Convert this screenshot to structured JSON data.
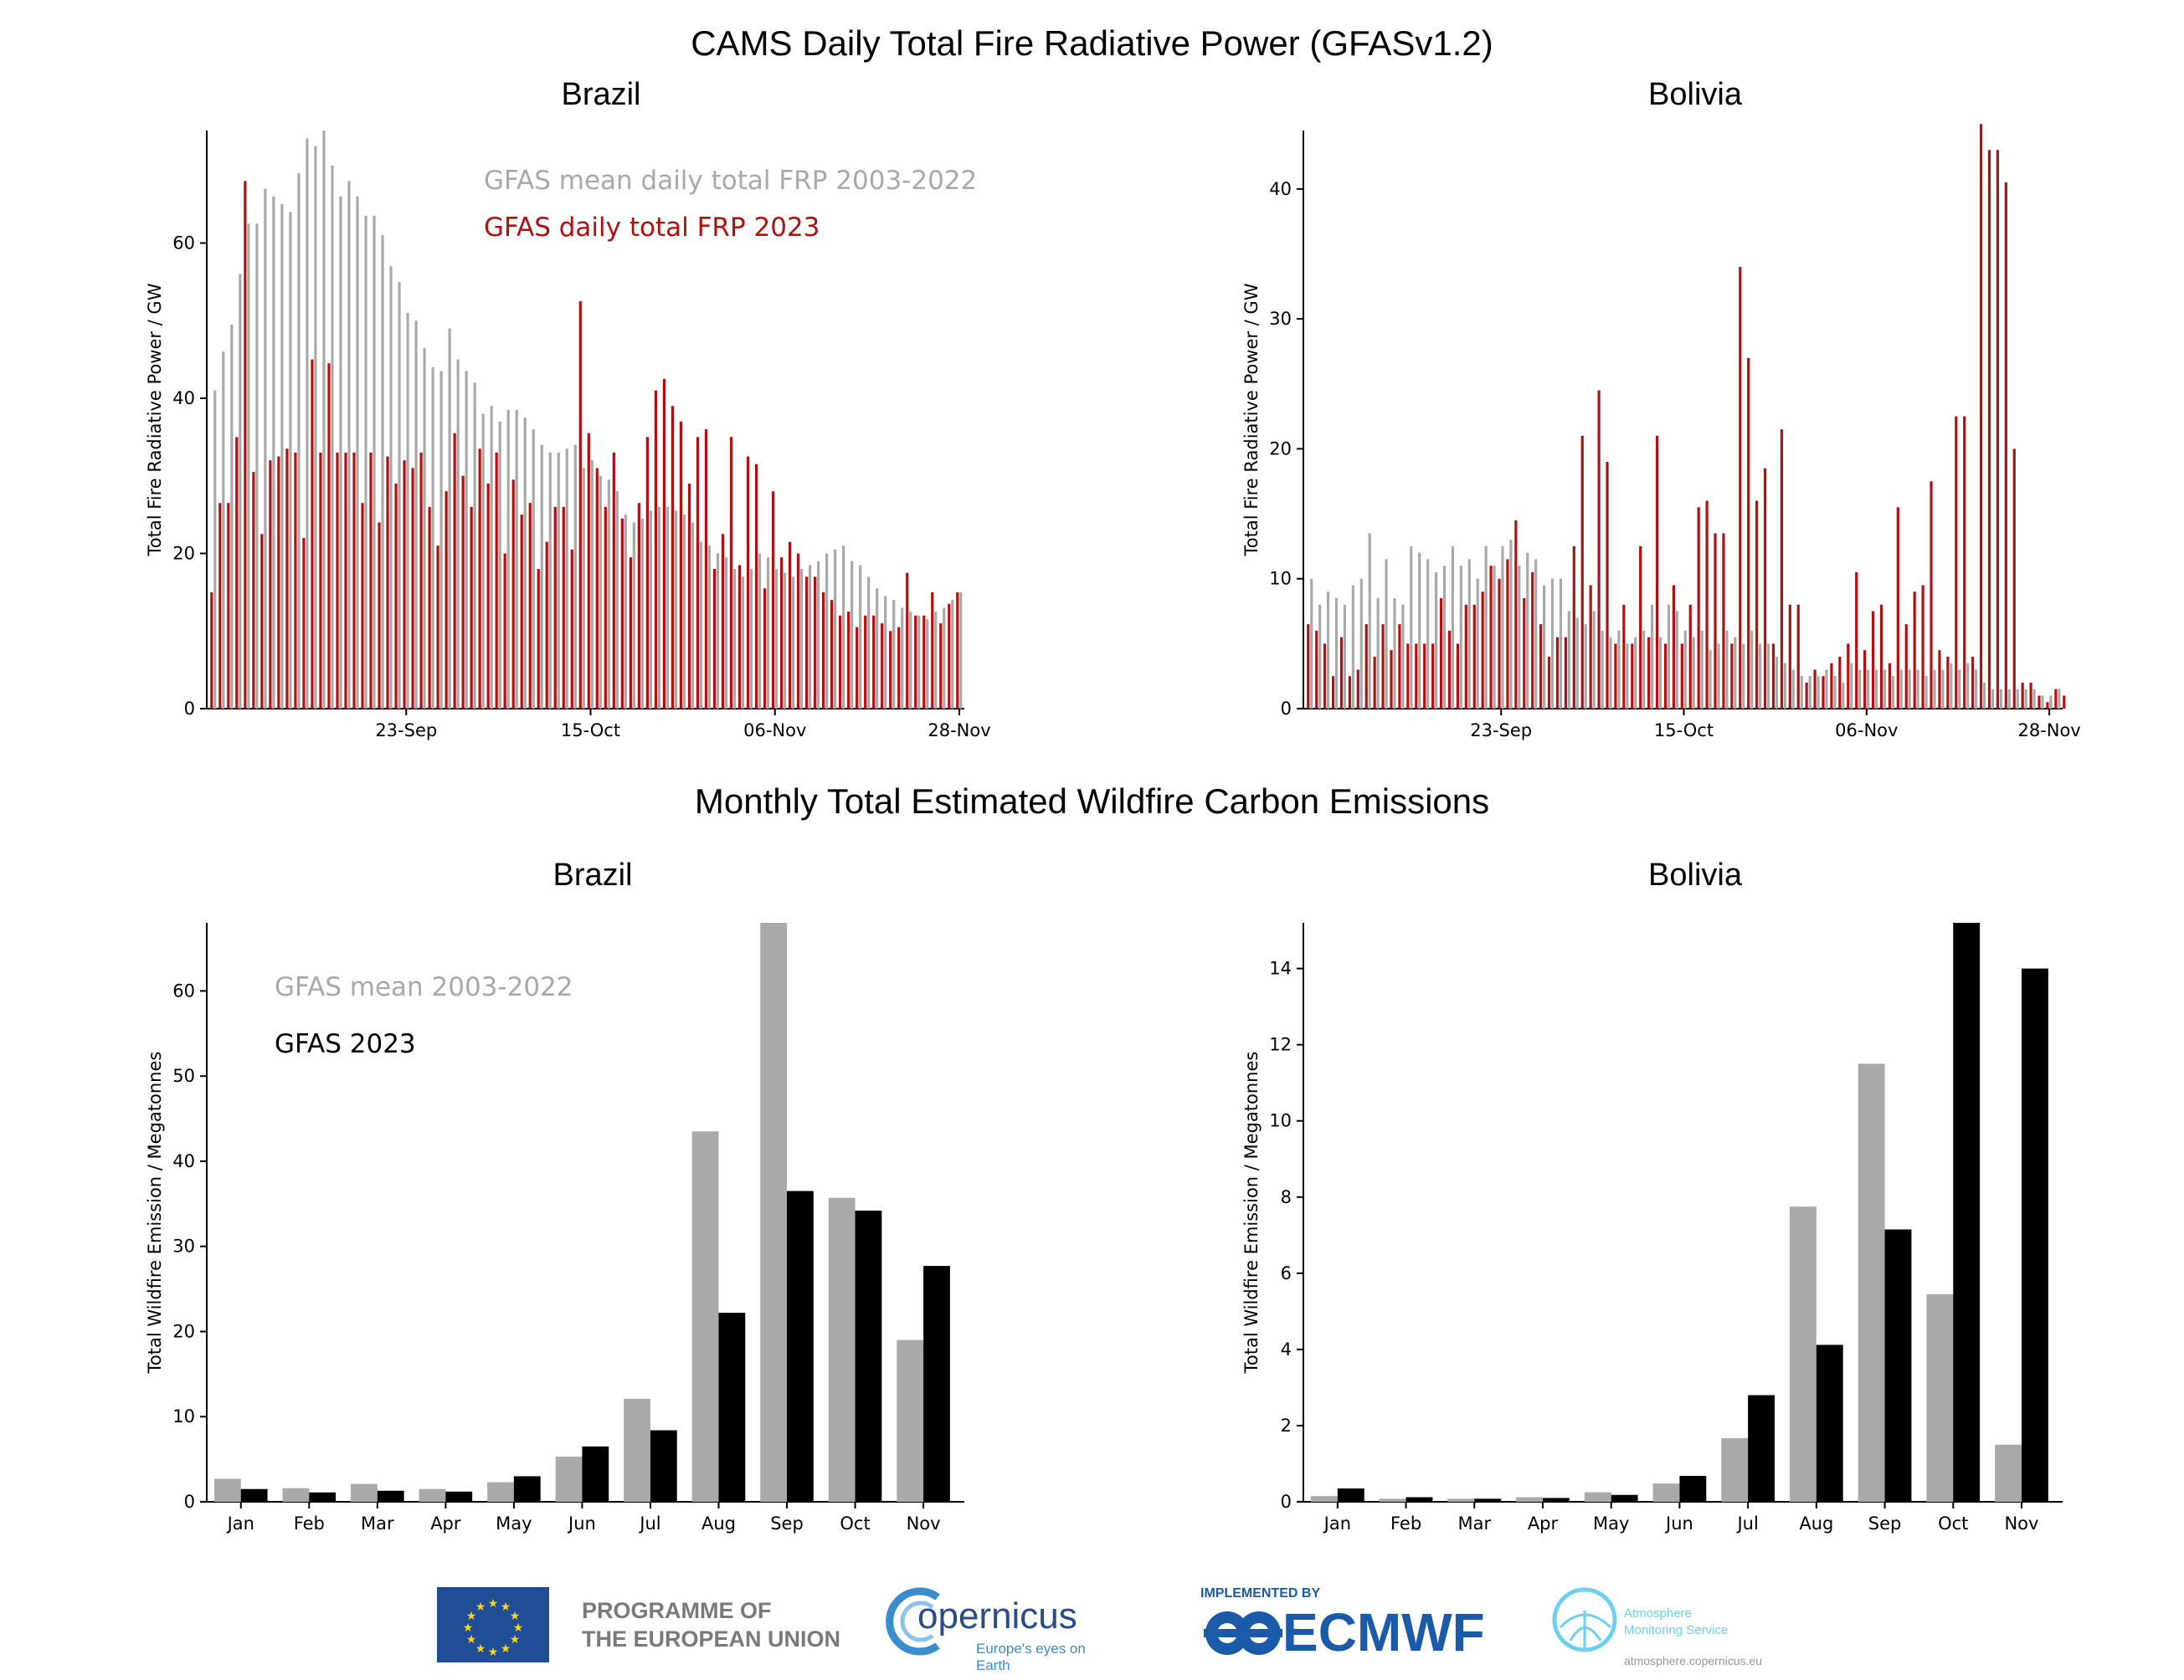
{
  "titles": {
    "main": "CAMS Daily Total Fire Radiative Power (GFASv1.2)",
    "monthly": "Monthly Total Estimated Wildfire Carbon Emissions"
  },
  "legend": {
    "frp_mean": "GFAS mean daily total FRP 2003-2022",
    "frp_2023": "GFAS daily total FRP 2023",
    "em_mean": "GFAS mean 2003-2022",
    "em_2023": "GFAS 2023"
  },
  "logos": {
    "eu_line1": "PROGRAMME OF",
    "eu_line2": "THE EUROPEAN UNION",
    "copernicus": "opernicus",
    "copernicus_letter": "C",
    "copernicus_tagline": "Europe's eyes on Earth",
    "implemented_by": "IMPLEMENTED BY",
    "ecmwf": "ECMWF",
    "atmo_line1": "Atmosphere",
    "atmo_line2": "Monitoring Service",
    "atmo_url": "atmosphere.copernicus.eu"
  },
  "colors": {
    "mean": "#a9a9a9",
    "frp2023": "#b01010",
    "em2023": "#000000"
  },
  "chart_data": [
    {
      "type": "bar",
      "title": "Brazil",
      "ylabel": "Total Fire Radiative Power / GW",
      "ylim": [
        0,
        74.5
      ],
      "yticks": [
        0,
        20,
        40,
        60
      ],
      "x_ticks": [
        {
          "label": "23-Sep",
          "index": 23
        },
        {
          "label": "15-Oct",
          "index": 45
        },
        {
          "label": "06-Nov",
          "index": 67
        },
        {
          "label": "28-Nov",
          "index": 89
        }
      ],
      "series": [
        {
          "name": "GFAS mean daily total FRP 2003-2022",
          "values": [
            41,
            46,
            49.5,
            56,
            62.5,
            62.5,
            67,
            66,
            65,
            64,
            69,
            73.5,
            72.5,
            74.5,
            70,
            66,
            68,
            66,
            63.5,
            63.5,
            61,
            57,
            55,
            51,
            50,
            46.5,
            44,
            43.5,
            49,
            45,
            43.5,
            42,
            38,
            39,
            37,
            38.5,
            38.5,
            37.5,
            36,
            34,
            33,
            33,
            33.5,
            34,
            31,
            32,
            30,
            29.5,
            28,
            25,
            24,
            24.5,
            25.5,
            26,
            26,
            25.5,
            25,
            24,
            21.5,
            21,
            20,
            19.5,
            18,
            17,
            18,
            20,
            19.5,
            18,
            17.5,
            17,
            18,
            18.5,
            19,
            20,
            20.5,
            21,
            19,
            18.5,
            17,
            15.5,
            14.5,
            14,
            13,
            12.5,
            12,
            11.5,
            12.5,
            13,
            14,
            15
          ]
        },
        {
          "name": "GFAS daily total FRP 2023",
          "values": [
            15,
            26.5,
            26.5,
            35,
            68,
            30.5,
            22.5,
            32,
            32.5,
            33.5,
            33,
            22,
            45,
            33,
            44.5,
            33,
            33,
            33,
            26.5,
            33,
            24,
            32.5,
            29,
            32,
            31,
            33,
            26,
            21,
            28,
            35.5,
            30,
            26,
            33.5,
            29,
            33,
            20,
            29.5,
            25,
            26.5,
            18,
            21.5,
            26,
            26,
            20.5,
            52.5,
            35.5,
            31,
            26,
            33,
            24.5,
            19.5,
            26.5,
            35,
            41,
            42.5,
            39,
            37,
            29,
            35,
            36,
            18,
            22.5,
            35,
            18.5,
            32.5,
            31.5,
            15.5,
            28,
            19.5,
            21.5,
            20,
            17,
            17,
            15,
            14,
            12,
            12.5,
            10.5,
            12,
            12,
            11,
            10,
            10.5,
            17.5,
            12,
            12,
            15,
            11,
            13.5,
            15
          ]
        }
      ]
    },
    {
      "type": "bar",
      "title": "Bolivia",
      "ylabel": "Total Fire Radiative Power / GW",
      "ylim": [
        0,
        44.5
      ],
      "yticks": [
        0,
        10,
        20,
        30,
        40
      ],
      "x_ticks": [
        {
          "label": "23-Sep",
          "index": 23
        },
        {
          "label": "15-Oct",
          "index": 45
        },
        {
          "label": "06-Nov",
          "index": 67
        },
        {
          "label": "28-Nov",
          "index": 89
        }
      ],
      "series": [
        {
          "name": "GFAS mean daily total FRP 2003-2022",
          "values": [
            10,
            8,
            9,
            8.5,
            8,
            9.5,
            10,
            13.5,
            8.5,
            11.5,
            8.5,
            8,
            12.5,
            12,
            11.5,
            10.5,
            11,
            12.5,
            11,
            11.5,
            10,
            12.5,
            11,
            12.5,
            13,
            11,
            12,
            11.5,
            9.5,
            10,
            10,
            7.5,
            7,
            6.5,
            7.5,
            6,
            5.5,
            6,
            5,
            5.5,
            6,
            8,
            5.5,
            8,
            7.5,
            6,
            5.5,
            6,
            4.5,
            5,
            6,
            5.5,
            5,
            6,
            5,
            5,
            4,
            3.5,
            3,
            2.5,
            2.5,
            2.5,
            3,
            2.5,
            2,
            3.5,
            3,
            3,
            3,
            3,
            2.5,
            3,
            3,
            3,
            2.5,
            3,
            3,
            3.5,
            3,
            3.5,
            3,
            2,
            1.5,
            1.5,
            1.5,
            1.5,
            1.5,
            1.5,
            1,
            1,
            1.5
          ]
        },
        {
          "name": "GFAS daily total FRP 2023",
          "values": [
            6.5,
            6,
            5,
            2.5,
            5.5,
            2.5,
            3,
            6.5,
            4,
            6.5,
            4.5,
            6.5,
            5,
            5,
            5,
            5,
            8.5,
            6,
            5,
            8,
            8,
            9,
            11,
            10,
            11.5,
            14.5,
            8.5,
            10.5,
            6.5,
            4,
            5.5,
            5.5,
            12.5,
            21,
            9.5,
            24.5,
            19,
            5,
            8,
            5,
            12.5,
            5.5,
            21,
            5,
            9.5,
            5,
            8,
            15.5,
            16,
            13.5,
            13.5,
            5,
            34,
            27,
            16,
            18.5,
            5,
            21.5,
            8,
            8,
            2,
            3,
            2.5,
            3.5,
            4,
            5,
            10.5,
            4.5,
            7.5,
            8,
            3.5,
            15.5,
            6.5,
            9,
            9.5,
            17.5,
            4.5,
            4,
            22.5,
            22.5,
            4,
            45,
            43,
            43,
            40.5,
            20,
            2,
            2,
            1,
            0.5,
            1.5,
            1
          ]
        }
      ]
    },
    {
      "type": "bar",
      "title": "Brazil",
      "ylabel": "Total Wildfire Emission / Megatonnes",
      "ylim": [
        0,
        68
      ],
      "yticks": [
        0,
        10,
        20,
        30,
        40,
        50,
        60
      ],
      "categories": [
        "Jan",
        "Feb",
        "Mar",
        "Apr",
        "May",
        "Jun",
        "Jul",
        "Aug",
        "Sep",
        "Oct",
        "Nov"
      ],
      "series": [
        {
          "name": "GFAS mean 2003-2022",
          "values": [
            2.7,
            1.6,
            2.1,
            1.5,
            2.3,
            5.3,
            12.1,
            43.5,
            68,
            35.7,
            19
          ]
        },
        {
          "name": "GFAS 2023",
          "values": [
            1.5,
            1.1,
            1.3,
            1.2,
            3,
            6.5,
            8.4,
            22.2,
            36.5,
            34.2,
            27.7
          ]
        }
      ]
    },
    {
      "type": "bar",
      "title": "Bolivia",
      "ylabel": "Total Wildfire Emission / Megatonnes",
      "ylim": [
        0,
        15.2
      ],
      "yticks": [
        0,
        2,
        4,
        6,
        8,
        10,
        12,
        14
      ],
      "categories": [
        "Jan",
        "Feb",
        "Mar",
        "Apr",
        "May",
        "Jun",
        "Jul",
        "Aug",
        "Sep",
        "Oct",
        "Nov"
      ],
      "series": [
        {
          "name": "GFAS mean 2003-2022",
          "values": [
            0.15,
            0.08,
            0.08,
            0.12,
            0.25,
            0.48,
            1.67,
            7.75,
            11.5,
            5.45,
            1.5
          ]
        },
        {
          "name": "GFAS 2023",
          "values": [
            0.35,
            0.12,
            0.08,
            0.1,
            0.18,
            0.68,
            2.8,
            4.12,
            7.15,
            15.2,
            14
          ]
        }
      ]
    }
  ]
}
